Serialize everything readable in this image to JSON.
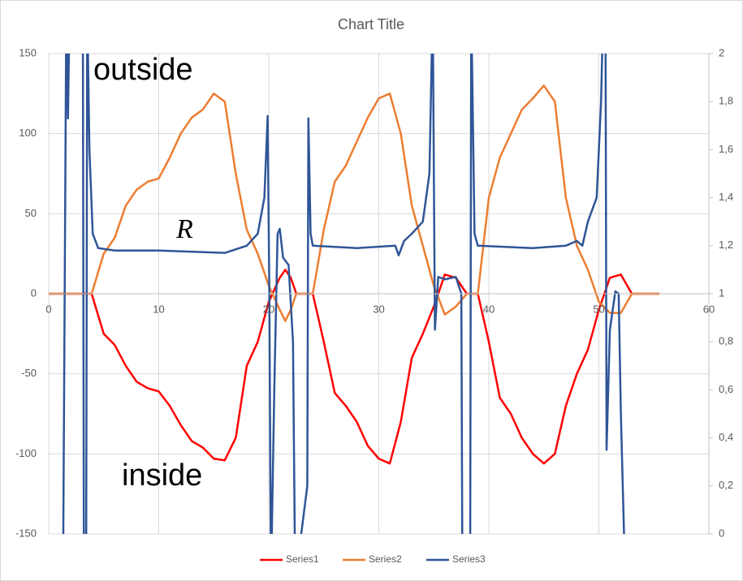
{
  "chart_data": {
    "type": "line",
    "title": "Chart Title",
    "annotations": [
      "outside",
      "R",
      "inside"
    ],
    "x": [
      0,
      3.9,
      5,
      6,
      7,
      8,
      9,
      10,
      11,
      12,
      13,
      14,
      15,
      16,
      17,
      18,
      19,
      20,
      21,
      21.5,
      22,
      22.5,
      24,
      25,
      26,
      27,
      28,
      29,
      30,
      31,
      32,
      33,
      34,
      35,
      36,
      37,
      38,
      39,
      40,
      41,
      42,
      43,
      44,
      45,
      46,
      47,
      48,
      49,
      50,
      51,
      52,
      53,
      55.5
    ],
    "series": [
      {
        "name": "Series1",
        "color": "#ff0000",
        "values": [
          0,
          0,
          -25,
          -32,
          -45,
          -55,
          -59,
          -61,
          -70,
          -82,
          -92,
          -96,
          -103,
          -104,
          -90,
          -45,
          -30,
          -5,
          10,
          15,
          10,
          0,
          0,
          -30,
          -62,
          -70,
          -80,
          -95,
          -103,
          -106,
          -80,
          -40,
          -25,
          -8,
          12,
          10,
          0,
          0,
          -30,
          -65,
          -75,
          -90,
          -100,
          -106,
          -100,
          -70,
          -50,
          -35,
          -10,
          10,
          12,
          0,
          0
        ]
      },
      {
        "name": "Series2",
        "color": "#ed7d31",
        "values": [
          0,
          0,
          25,
          35,
          55,
          65,
          70,
          72,
          85,
          100,
          110,
          115,
          125,
          120,
          75,
          40,
          25,
          5,
          -10,
          -17,
          -10,
          0,
          0,
          40,
          70,
          80,
          95,
          110,
          122,
          125,
          100,
          55,
          30,
          5,
          -13,
          -8,
          0,
          0,
          60,
          85,
          100,
          115,
          122,
          130,
          120,
          60,
          30,
          15,
          -5,
          -12,
          -12,
          0,
          0
        ]
      },
      {
        "name": "Series3",
        "color": "#2f5597",
        "axis": "y2",
        "x": [
          1.3,
          1.6,
          1.75,
          1.9,
          3.1,
          3.2,
          3.4,
          3.5,
          3.7,
          4,
          4.5,
          6,
          10,
          16,
          18,
          19,
          19.6,
          19.9,
          20.05,
          20.2,
          20.5,
          20.8,
          21,
          21.3,
          21.8,
          22.2,
          22.4,
          23.5,
          23.6,
          23.8,
          24,
          28,
          31.5,
          31.8,
          32.3,
          33,
          34,
          34.6,
          34.9,
          35.1,
          35.4,
          36,
          37,
          37.5,
          37.6,
          38.3,
          38.4,
          38.7,
          39,
          44,
          47,
          48,
          48.5,
          49,
          49.8,
          50.2,
          50.4,
          50.6,
          50.7,
          51,
          51.5,
          51.8,
          52,
          52.4
        ],
        "values": [
          -0.2,
          2.2,
          1.73,
          2.2,
          2.2,
          -0.2,
          -0.2,
          2.2,
          1.6,
          1.25,
          1.19,
          1.18,
          1.18,
          1.17,
          1.2,
          1.25,
          1.4,
          1.74,
          1.0,
          -0.2,
          0.6,
          1.25,
          1.27,
          1.15,
          1.12,
          0.8,
          -0.2,
          0.2,
          1.73,
          1.25,
          1.2,
          1.19,
          1.2,
          1.16,
          1.22,
          1.25,
          1.3,
          1.5,
          2.2,
          0.85,
          1.07,
          1.06,
          1.07,
          1.0,
          -0.2,
          -0.2,
          2.2,
          1.25,
          1.2,
          1.19,
          1.2,
          1.22,
          1.2,
          1.3,
          1.4,
          1.8,
          2.2,
          2.2,
          0.35,
          0.85,
          1.01,
          1.0,
          0.5,
          -0.2
        ]
      }
    ],
    "xlim": [
      0,
      60
    ],
    "xticks": [
      0,
      10,
      20,
      30,
      40,
      50,
      60
    ],
    "ylim": [
      -150,
      150
    ],
    "yticks": [
      -150,
      -100,
      -50,
      0,
      50,
      100,
      150
    ],
    "y2lim": [
      0,
      2
    ],
    "y2ticks": [
      0,
      {
        "value": 0.2,
        "label": "0,2"
      },
      {
        "value": 0.4,
        "label": "0,4"
      },
      {
        "value": 0.6,
        "label": "0,6"
      },
      {
        "value": 0.8,
        "label": "0,8"
      },
      1,
      {
        "value": 1.2,
        "label": "1,2"
      },
      {
        "value": 1.4,
        "label": "1,4"
      },
      {
        "value": 1.6,
        "label": "1,6"
      },
      {
        "value": 1.8,
        "label": "1,8"
      },
      2
    ],
    "grid": true,
    "legend": "bottom"
  }
}
